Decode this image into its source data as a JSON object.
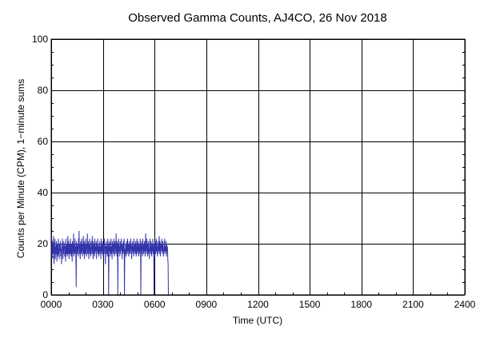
{
  "chart_data": {
    "type": "line",
    "title": "Observed Gamma Counts, AJ4CO, 26 Nov 2018",
    "xlabel": "Time (UTC)",
    "ylabel": "Counts per Minute (CPM), 1−minute sums",
    "xlim": [
      0,
      24
    ],
    "ylim": [
      0,
      100
    ],
    "x_ticks": [
      0,
      3,
      6,
      9,
      12,
      15,
      18,
      21,
      24
    ],
    "x_tick_labels": [
      "0000",
      "0300",
      "0600",
      "0900",
      "1200",
      "1500",
      "1800",
      "2100",
      "2400"
    ],
    "y_ticks": [
      0,
      20,
      40,
      60,
      80,
      100
    ],
    "y_tick_labels": [
      "0",
      "20",
      "40",
      "60",
      "80",
      "100"
    ],
    "grid": true,
    "colors": {
      "series": "#3333aa",
      "grid": "#000000"
    },
    "series": [
      {
        "x_start_hour": 0,
        "x_step_minutes": 1,
        "values": [
          18,
          24,
          20,
          14,
          17,
          21,
          16,
          19,
          23,
          15,
          12,
          18,
          20,
          22,
          14,
          17,
          19,
          16,
          21,
          18,
          13,
          20,
          17,
          15,
          19,
          22,
          16,
          18,
          14,
          20,
          17,
          19,
          21,
          15,
          18,
          16,
          12,
          20,
          18,
          22,
          17,
          14,
          19,
          16,
          21,
          18,
          20,
          15,
          17,
          19,
          13,
          22,
          18,
          16,
          20,
          17,
          15,
          19,
          23,
          16,
          18,
          21,
          14,
          17,
          20,
          18,
          16,
          22,
          19,
          15,
          17,
          20,
          18,
          13,
          21,
          16,
          19,
          17,
          24,
          15,
          18,
          20,
          16,
          22,
          17,
          19,
          14,
          3,
          21,
          18,
          16,
          20,
          17,
          19,
          15,
          22,
          18,
          25,
          16,
          20,
          17,
          14,
          19,
          21,
          18,
          16,
          22,
          17,
          20,
          15,
          18,
          19,
          23,
          16,
          17,
          21,
          14,
          20,
          18,
          16,
          22,
          19,
          17,
          15,
          20,
          18,
          24,
          16,
          19,
          21,
          17,
          14,
          20,
          18,
          22,
          16,
          19,
          17,
          15,
          21,
          18,
          20,
          16,
          23,
          17,
          19,
          14,
          21,
          18,
          16,
          20,
          15,
          22,
          18,
          17,
          19,
          16,
          21,
          14,
          18,
          20,
          17,
          22,
          16,
          19,
          18,
          15,
          20,
          17,
          21,
          16,
          18,
          19,
          14,
          22,
          17,
          20,
          18,
          16,
          21,
          19,
          15,
          17,
          20,
          18,
          22,
          16,
          19,
          17,
          12,
          20,
          18,
          21,
          16,
          19,
          17,
          15,
          22,
          18,
          20,
          0,
          16,
          19,
          21,
          17,
          18,
          15,
          20,
          22,
          16,
          18,
          19,
          14,
          21,
          17,
          20,
          18,
          16,
          22,
          19,
          15,
          17,
          21,
          18,
          20,
          16,
          24,
          17,
          19,
          15,
          21,
          18,
          0,
          20,
          16,
          22,
          17,
          19,
          18,
          15,
          21,
          16,
          20,
          18,
          22,
          17,
          19,
          14,
          20,
          18,
          16,
          21,
          17,
          19,
          22,
          0,
          13,
          18,
          16,
          20,
          17,
          15,
          19,
          21,
          18,
          16,
          22,
          17,
          20,
          19,
          15,
          18,
          21,
          16,
          17,
          20,
          18,
          22,
          16,
          19,
          14,
          20,
          17,
          21,
          18,
          16,
          19,
          15,
          22,
          18,
          17,
          20,
          16,
          19,
          21,
          17,
          15,
          18,
          20,
          22,
          16,
          19,
          17,
          21,
          18,
          15,
          20,
          16,
          19,
          17,
          22,
          18,
          0,
          20,
          16,
          21,
          17,
          19,
          15,
          22,
          18,
          20,
          16,
          19,
          17,
          21,
          18,
          15,
          20,
          24,
          17,
          19,
          16,
          22,
          18,
          20,
          15,
          17,
          21,
          19,
          16,
          18,
          14,
          20,
          22,
          17,
          19,
          16,
          21,
          18,
          15,
          20,
          17,
          19,
          22,
          16,
          18,
          20,
          0,
          17,
          19,
          15,
          21,
          18,
          16,
          20,
          22,
          17,
          19,
          18,
          15,
          21,
          16,
          20,
          17,
          19,
          23,
          18,
          16,
          21,
          15,
          20,
          17,
          19,
          18,
          22,
          16,
          20,
          17,
          21,
          19,
          15,
          18,
          16,
          20,
          22,
          17,
          19,
          18,
          16,
          21,
          15,
          20,
          17,
          19,
          18,
          14,
          12,
          0
        ]
      }
    ]
  }
}
